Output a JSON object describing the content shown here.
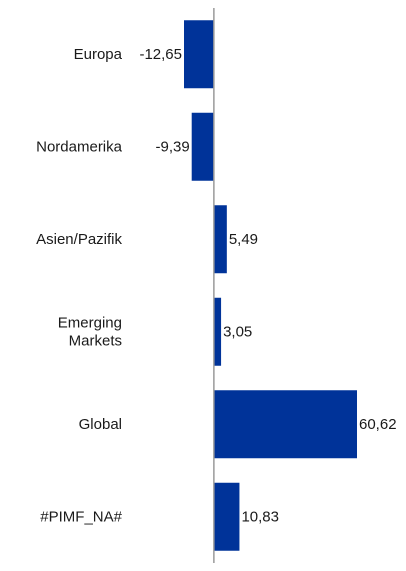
{
  "chart_data": {
    "type": "bar",
    "orientation": "horizontal",
    "title": "",
    "xlabel": "",
    "ylabel": "",
    "categories": [
      [
        "Europa"
      ],
      [
        "Nordamerika"
      ],
      [
        "Asien/Pazifik"
      ],
      [
        "Emerging",
        "Markets"
      ],
      [
        "Global"
      ],
      [
        "#PIMF_NA#"
      ]
    ],
    "values": [
      -12.65,
      -9.39,
      5.49,
      3.05,
      60.62,
      10.83
    ],
    "value_labels": [
      "-12,65",
      "-9,39",
      "5,49",
      "3,05",
      "60,62",
      "10,83"
    ],
    "xlim": [
      -12.65,
      60.62
    ],
    "grid": false,
    "legend": "none",
    "bar_color": "#003399",
    "axis_color": "#9a9a9a"
  }
}
